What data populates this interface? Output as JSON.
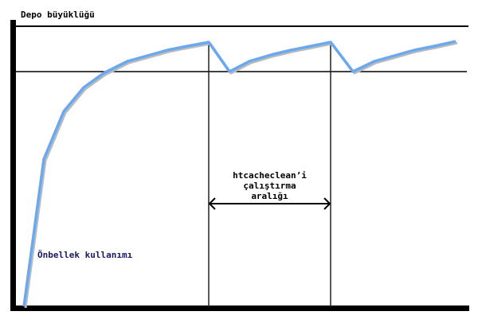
{
  "y_axis_label": "Depo büyüklüğü",
  "curve_label": "Önbellek kullanımı",
  "interval_label": [
    "htcacheclean’i",
    "çalıştırma",
    "aralığı"
  ],
  "colors": {
    "curve": "#6aa8f0",
    "axes": "#000000"
  }
}
